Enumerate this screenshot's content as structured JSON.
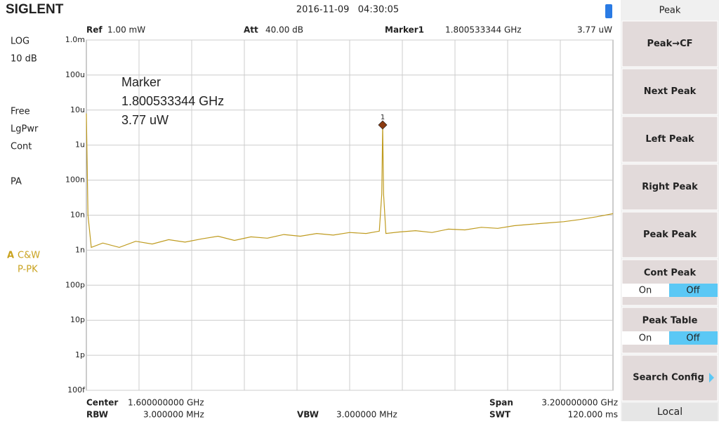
{
  "header": {
    "brand": "SIGLENT",
    "datetime": "2016-11-09   04:30:05"
  },
  "left_panel": {
    "items": [
      "LOG",
      "10 dB",
      "Free",
      "LgPwr",
      "Cont",
      "PA"
    ],
    "trace_label": "A",
    "trace_modes": [
      "C&W",
      "P-PK"
    ]
  },
  "top_bar": {
    "ref_label": "Ref",
    "ref_value": "1.00 mW",
    "att_label": "Att",
    "att_value": "40.00 dB",
    "marker_label": "Marker1",
    "marker_freq": "1.800533344 GHz",
    "marker_amp": "3.77 uW"
  },
  "marker_box": {
    "lines": [
      "Marker",
      "1.800533344 GHz",
      "3.77 uW"
    ]
  },
  "chart_data": {
    "type": "line",
    "log_scale": true,
    "xlim": [
      0,
      3.2
    ],
    "ylim": [
      1e-13,
      0.001
    ],
    "yticks": [
      {
        "value": 0.001,
        "label": "1.0m"
      },
      {
        "value": 0.0001,
        "label": "100u"
      },
      {
        "value": 1e-05,
        "label": "10u"
      },
      {
        "value": 1e-06,
        "label": "1u"
      },
      {
        "value": 1e-07,
        "label": "100n"
      },
      {
        "value": 1e-08,
        "label": "10n"
      },
      {
        "value": 1e-09,
        "label": "1n"
      },
      {
        "value": 1e-10,
        "label": "100p"
      },
      {
        "value": 1e-11,
        "label": "10p"
      },
      {
        "value": 1e-12,
        "label": "1p"
      },
      {
        "value": 1e-13,
        "label": "100f"
      }
    ],
    "grid": true,
    "x": [
      0,
      0.01,
      0.03,
      0.1,
      0.2,
      0.3,
      0.4,
      0.5,
      0.6,
      0.7,
      0.8,
      0.9,
      1.0,
      1.1,
      1.2,
      1.3,
      1.4,
      1.5,
      1.6,
      1.7,
      1.78,
      1.795,
      1.8005,
      1.806,
      1.82,
      1.9,
      2.0,
      2.1,
      2.2,
      2.3,
      2.4,
      2.5,
      2.6,
      2.7,
      2.8,
      2.9,
      3.0,
      3.1,
      3.2
    ],
    "series": [
      {
        "color": "#bf9b1f",
        "values": [
          8e-06,
          1e-08,
          1.2e-09,
          1.6e-09,
          1.2e-09,
          1.8e-09,
          1.5e-09,
          2e-09,
          1.7e-09,
          2.1e-09,
          2.5e-09,
          1.9e-09,
          2.4e-09,
          2.2e-09,
          2.8e-09,
          2.5e-09,
          3e-09,
          2.7e-09,
          3.2e-09,
          3e-09,
          3.5e-09,
          4e-08,
          3.77e-06,
          4e-08,
          3e-09,
          3.3e-09,
          3.6e-09,
          3.2e-09,
          4e-09,
          3.8e-09,
          4.5e-09,
          4.2e-09,
          5e-09,
          5.5e-09,
          6e-09,
          6.5e-09,
          7.5e-09,
          9e-09,
          1.1e-08
        ]
      }
    ],
    "marker": {
      "label": "1",
      "x": 1.800533344,
      "value": 3.77e-06,
      "color": "#8b3a10"
    }
  },
  "bottom_bar": {
    "center_label": "Center",
    "center_value": "1.600000000 GHz",
    "rbw_label": "RBW",
    "rbw_value": "3.000000 MHz",
    "vbw_label": "VBW",
    "vbw_value": "3.000000 MHz",
    "span_label": "Span",
    "span_value": "3.200000000 GHz",
    "swt_label": "SWT",
    "swt_value": "120.000 ms"
  },
  "softkeys": {
    "title": "Peak",
    "buttons": [
      "Peak→CF",
      "Next Peak",
      "Left Peak",
      "Right Peak",
      "Peak Peak"
    ],
    "toggles": [
      {
        "label": "Cont Peak",
        "on": "On",
        "off": "Off"
      },
      {
        "label": "Peak Table",
        "on": "On",
        "off": "Off"
      }
    ],
    "config": "Search Config",
    "footer": "Local"
  }
}
